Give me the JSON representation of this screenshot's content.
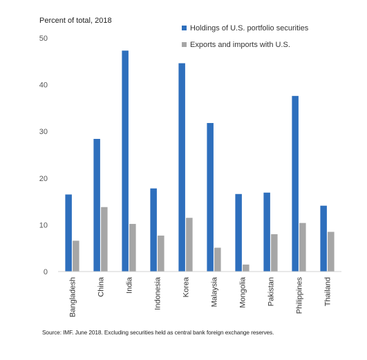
{
  "chart_data": {
    "type": "bar",
    "subtitle": "Percent of total, 2018",
    "categories": [
      "Bangladesh",
      "China",
      "India",
      "Indonesia",
      "Korea",
      "Malaysia",
      "Mongolia",
      "Pakistan",
      "Philippines",
      "Thailand"
    ],
    "series": [
      {
        "name": "Holdings of U.S. portfolio securities",
        "color": "#2e6fbd",
        "values": [
          16.5,
          28.4,
          47.3,
          17.8,
          44.6,
          31.8,
          16.6,
          16.9,
          37.6,
          14.1
        ]
      },
      {
        "name": "Exports and imports with U.S.",
        "color": "#a6a6a6",
        "values": [
          6.6,
          13.8,
          10.2,
          7.7,
          11.5,
          5.1,
          1.5,
          8.0,
          10.4,
          8.5
        ]
      }
    ],
    "ylim": [
      0,
      50
    ],
    "yticks": [
      0,
      10,
      20,
      30,
      40,
      50
    ],
    "grid": false,
    "legend_position": "top-right"
  },
  "source": "Source: IMF. June 2018. Excluding securities held as central bank foreign exchange reserves."
}
